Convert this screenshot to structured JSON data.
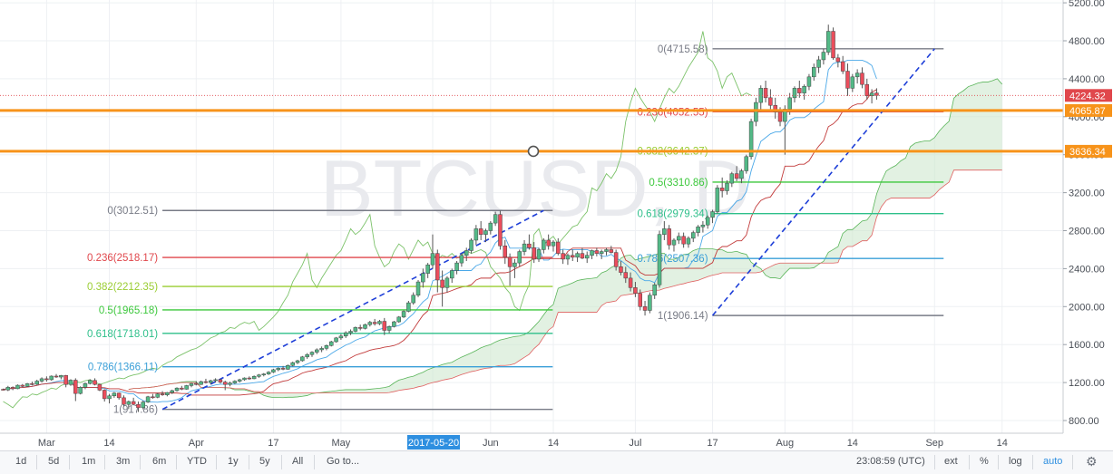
{
  "chart_data": {
    "type": "candlestick",
    "symbol_watermark": "BTCUSD, D",
    "y_axis": {
      "position": "right",
      "ticks": [
        800,
        1200,
        1600,
        2000,
        2400,
        2800,
        3200,
        3600,
        4000,
        4400,
        4800,
        5200
      ],
      "tick_labels": [
        "800.00",
        "1200.00",
        "1600.00",
        "2000.00",
        "2400.00",
        "2800.00",
        "3200.00",
        "3600.00",
        "4000.00",
        "4400.00",
        "4800.00",
        "5200.00"
      ]
    },
    "x_axis": {
      "tick_labels": [
        "Mar",
        "14",
        "Apr",
        "17",
        "May",
        "2017-05-20",
        "Jun",
        "14",
        "Jul",
        "17",
        "Aug",
        "14",
        "Sep",
        "14"
      ],
      "highlighted_label": "2017-05-20"
    },
    "price_badges": [
      {
        "value": 4224.32,
        "label": "4224.32",
        "color": "#e0474c"
      },
      {
        "value": 4065.87,
        "label": "4065.87",
        "color": "#f7931a"
      },
      {
        "value": 3636.34,
        "label": "3636.34",
        "color": "#f7931a"
      }
    ],
    "horizontal_lines": [
      {
        "value": 4065.87,
        "color": "#f7931a"
      },
      {
        "value": 3636.34,
        "color": "#f7931a"
      }
    ],
    "fib_sets": [
      {
        "name": "fib-retracement-1",
        "start_date": "2017-03-25",
        "end_date": "2017-06-12",
        "levels": [
          {
            "label": "0(3012.51)",
            "value": 3012.51,
            "color": "#787b86"
          },
          {
            "label": "0.236(2518.17)",
            "value": 2518.17,
            "color": "#e0474c"
          },
          {
            "label": "0.382(2212.35)",
            "value": 2212.35,
            "color": "#9acd32"
          },
          {
            "label": "0.5(1965.18)",
            "value": 1965.18,
            "color": "#3cc83c"
          },
          {
            "label": "0.618(1718.01)",
            "value": 1718.01,
            "color": "#2dbf8a"
          },
          {
            "label": "0.786(1366.11)",
            "value": 1366.11,
            "color": "#3a9fd8"
          },
          {
            "label": "1(917.86)",
            "value": 917.86,
            "color": "#787b86"
          }
        ]
      },
      {
        "name": "fib-retracement-2",
        "start_date": "2017-07-17",
        "end_date": "2017-09-01",
        "levels": [
          {
            "label": "0(4715.58)",
            "value": 4715.58,
            "color": "#787b86"
          },
          {
            "label": "0.236(4052.55)",
            "value": 4052.55,
            "color": "#e0474c"
          },
          {
            "label": "0.382(3642.37)",
            "value": 3642.37,
            "color": "#9acd32"
          },
          {
            "label": "0.5(3310.86)",
            "value": 3310.86,
            "color": "#3cc83c"
          },
          {
            "label": "0.618(2979.34)",
            "value": 2979.34,
            "color": "#2dbf8a"
          },
          {
            "label": "0.786(2507.36)",
            "value": 2507.36,
            "color": "#3a9fd8"
          },
          {
            "label": "1(1906.14)",
            "value": 1906.14,
            "color": "#787b86"
          }
        ]
      }
    ],
    "trend_lines": [
      {
        "from": [
          "2017-03-25",
          917.86
        ],
        "to": [
          "2017-06-12",
          3012.51
        ],
        "color": "#1e3fd8",
        "style": "dashed"
      },
      {
        "from": [
          "2017-07-17",
          1906.14
        ],
        "to": [
          "2017-09-01",
          4715.58
        ],
        "color": "#1e3fd8",
        "style": "dashed"
      }
    ],
    "candle_colors": {
      "up": "#53b987",
      "down": "#eb4d5c",
      "wick": "#555555"
    },
    "candles": [
      [
        1129,
        1137,
        1118,
        1122
      ],
      [
        1122,
        1165,
        1110,
        1150
      ],
      [
        1150,
        1160,
        1120,
        1135
      ],
      [
        1135,
        1180,
        1130,
        1172
      ],
      [
        1172,
        1185,
        1150,
        1160
      ],
      [
        1160,
        1195,
        1155,
        1188
      ],
      [
        1188,
        1210,
        1170,
        1182
      ],
      [
        1182,
        1230,
        1175,
        1215
      ],
      [
        1215,
        1255,
        1200,
        1240
      ],
      [
        1240,
        1265,
        1210,
        1230
      ],
      [
        1230,
        1275,
        1220,
        1268
      ],
      [
        1268,
        1290,
        1250,
        1258
      ],
      [
        1258,
        1280,
        1235,
        1275
      ],
      [
        1275,
        1280,
        1150,
        1180
      ],
      [
        1180,
        1235,
        1165,
        1225
      ],
      [
        1225,
        1245,
        1005,
        1085
      ],
      [
        1085,
        1160,
        1075,
        1150
      ],
      [
        1150,
        1200,
        1130,
        1190
      ],
      [
        1190,
        1235,
        1180,
        1222
      ],
      [
        1222,
        1245,
        1170,
        1180
      ],
      [
        1180,
        1190,
        1110,
        1120
      ],
      [
        1120,
        1130,
        1000,
        1030
      ],
      [
        1030,
        1080,
        980,
        1060
      ],
      [
        1060,
        1100,
        1040,
        1090
      ],
      [
        1090,
        1095,
        1020,
        1040
      ],
      [
        1040,
        1065,
        950,
        970
      ],
      [
        970,
        1010,
        920,
        1000
      ],
      [
        1000,
        1040,
        960,
        970
      ],
      [
        970,
        1000,
        890,
        935
      ],
      [
        935,
        1010,
        917,
        995
      ],
      [
        995,
        1060,
        985,
        1050
      ],
      [
        1050,
        1080,
        1030,
        1045
      ],
      [
        1045,
        1090,
        1035,
        1080
      ],
      [
        1080,
        1110,
        1060,
        1070
      ],
      [
        1070,
        1100,
        1055,
        1095
      ],
      [
        1095,
        1125,
        1080,
        1115
      ],
      [
        1115,
        1150,
        1105,
        1142
      ],
      [
        1142,
        1165,
        1120,
        1130
      ],
      [
        1130,
        1175,
        1125,
        1168
      ],
      [
        1168,
        1195,
        1150,
        1190
      ],
      [
        1190,
        1215,
        1170,
        1180
      ],
      [
        1180,
        1220,
        1175,
        1210
      ],
      [
        1210,
        1240,
        1190,
        1200
      ],
      [
        1200,
        1230,
        1180,
        1220
      ],
      [
        1220,
        1245,
        1200,
        1230
      ],
      [
        1230,
        1240,
        1190,
        1205
      ],
      [
        1205,
        1220,
        1120,
        1180
      ],
      [
        1180,
        1210,
        1160,
        1195
      ],
      [
        1195,
        1225,
        1185,
        1215
      ],
      [
        1215,
        1240,
        1200,
        1230
      ],
      [
        1230,
        1255,
        1220,
        1248
      ],
      [
        1248,
        1265,
        1230,
        1240
      ],
      [
        1240,
        1275,
        1235,
        1265
      ],
      [
        1265,
        1290,
        1250,
        1280
      ],
      [
        1280,
        1300,
        1265,
        1290
      ],
      [
        1290,
        1320,
        1280,
        1310
      ],
      [
        1310,
        1345,
        1300,
        1335
      ],
      [
        1335,
        1360,
        1320,
        1350
      ],
      [
        1350,
        1375,
        1330,
        1340
      ],
      [
        1340,
        1390,
        1335,
        1380
      ],
      [
        1380,
        1420,
        1370,
        1410
      ],
      [
        1410,
        1440,
        1395,
        1430
      ],
      [
        1430,
        1480,
        1420,
        1470
      ],
      [
        1470,
        1510,
        1450,
        1495
      ],
      [
        1495,
        1530,
        1470,
        1520
      ],
      [
        1520,
        1560,
        1500,
        1545
      ],
      [
        1545,
        1580,
        1520,
        1560
      ],
      [
        1560,
        1600,
        1540,
        1590
      ],
      [
        1590,
        1640,
        1580,
        1630
      ],
      [
        1630,
        1680,
        1620,
        1670
      ],
      [
        1670,
        1710,
        1650,
        1690
      ],
      [
        1690,
        1740,
        1670,
        1725
      ],
      [
        1725,
        1760,
        1700,
        1740
      ],
      [
        1740,
        1790,
        1730,
        1780
      ],
      [
        1780,
        1810,
        1750,
        1770
      ],
      [
        1770,
        1820,
        1760,
        1810
      ],
      [
        1810,
        1850,
        1790,
        1835
      ],
      [
        1835,
        1870,
        1800,
        1820
      ],
      [
        1820,
        1860,
        1805,
        1845
      ],
      [
        1845,
        1880,
        1700,
        1750
      ],
      [
        1750,
        1800,
        1720,
        1790
      ],
      [
        1790,
        1850,
        1780,
        1840
      ],
      [
        1840,
        1900,
        1830,
        1890
      ],
      [
        1890,
        1960,
        1880,
        1950
      ],
      [
        1950,
        2060,
        1940,
        2040
      ],
      [
        2040,
        2150,
        2020,
        2120
      ],
      [
        2120,
        2280,
        2100,
        2260
      ],
      [
        2260,
        2400,
        2200,
        2350
      ],
      [
        2350,
        2460,
        2300,
        2440
      ],
      [
        2440,
        2760,
        2400,
        2560
      ],
      [
        2560,
        2600,
        2150,
        2280
      ],
      [
        2280,
        2380,
        2000,
        2200
      ],
      [
        2200,
        2320,
        2150,
        2300
      ],
      [
        2300,
        2400,
        2250,
        2380
      ],
      [
        2380,
        2480,
        2340,
        2460
      ],
      [
        2460,
        2560,
        2420,
        2540
      ],
      [
        2540,
        2620,
        2480,
        2590
      ],
      [
        2590,
        2720,
        2560,
        2700
      ],
      [
        2700,
        2860,
        2650,
        2820
      ],
      [
        2820,
        2900,
        2700,
        2760
      ],
      [
        2760,
        2820,
        2680,
        2800
      ],
      [
        2800,
        2900,
        2760,
        2880
      ],
      [
        2880,
        3000,
        2850,
        2970
      ],
      [
        2970,
        3012,
        2600,
        2640
      ],
      [
        2640,
        2700,
        2450,
        2520
      ],
      [
        2520,
        2560,
        2220,
        2420
      ],
      [
        2420,
        2500,
        2300,
        2460
      ],
      [
        2460,
        2600,
        2420,
        2580
      ],
      [
        2580,
        2700,
        2540,
        2660
      ],
      [
        2660,
        2760,
        2600,
        2620
      ],
      [
        2620,
        2680,
        2460,
        2500
      ],
      [
        2500,
        2620,
        2470,
        2600
      ],
      [
        2600,
        2720,
        2560,
        2700
      ],
      [
        2700,
        2760,
        2600,
        2640
      ],
      [
        2640,
        2700,
        2580,
        2680
      ],
      [
        2680,
        2720,
        2540,
        2560
      ],
      [
        2560,
        2600,
        2450,
        2500
      ],
      [
        2500,
        2560,
        2440,
        2540
      ],
      [
        2540,
        2600,
        2480,
        2520
      ],
      [
        2520,
        2580,
        2470,
        2560
      ],
      [
        2560,
        2620,
        2500,
        2510
      ],
      [
        2510,
        2580,
        2460,
        2540
      ],
      [
        2540,
        2600,
        2500,
        2590
      ],
      [
        2590,
        2620,
        2530,
        2560
      ],
      [
        2560,
        2600,
        2500,
        2580
      ],
      [
        2580,
        2620,
        2540,
        2600
      ],
      [
        2600,
        2640,
        2560,
        2570
      ],
      [
        2570,
        2600,
        2380,
        2420
      ],
      [
        2420,
        2480,
        2330,
        2360
      ],
      [
        2360,
        2420,
        2250,
        2300
      ],
      [
        2300,
        2360,
        2160,
        2200
      ],
      [
        2200,
        2260,
        2100,
        2140
      ],
      [
        2140,
        2180,
        1960,
        2000
      ],
      [
        2000,
        2060,
        1906,
        1960
      ],
      [
        1960,
        2150,
        1930,
        2120
      ],
      [
        2120,
        2250,
        2080,
        2230
      ],
      [
        2230,
        2800,
        2200,
        2760
      ],
      [
        2760,
        2900,
        2700,
        2820
      ],
      [
        2820,
        2860,
        2600,
        2650
      ],
      [
        2650,
        2720,
        2580,
        2700
      ],
      [
        2700,
        2780,
        2660,
        2740
      ],
      [
        2740,
        2780,
        2620,
        2660
      ],
      [
        2660,
        2740,
        2620,
        2720
      ],
      [
        2720,
        2800,
        2680,
        2780
      ],
      [
        2780,
        2860,
        2740,
        2840
      ],
      [
        2840,
        2900,
        2780,
        2860
      ],
      [
        2860,
        2960,
        2820,
        2940
      ],
      [
        2940,
        3020,
        2880,
        3000
      ],
      [
        3000,
        3280,
        2980,
        3250
      ],
      [
        3250,
        3360,
        3150,
        3220
      ],
      [
        3220,
        3330,
        3180,
        3300
      ],
      [
        3300,
        3420,
        3260,
        3400
      ],
      [
        3400,
        3480,
        3320,
        3350
      ],
      [
        3350,
        3450,
        3300,
        3430
      ],
      [
        3430,
        3600,
        3400,
        3580
      ],
      [
        3580,
        3980,
        3550,
        3950
      ],
      [
        3950,
        4200,
        3900,
        4150
      ],
      [
        4150,
        4330,
        4050,
        4300
      ],
      [
        4300,
        4380,
        4150,
        4200
      ],
      [
        4200,
        4290,
        4080,
        4120
      ],
      [
        4120,
        4200,
        3980,
        4050
      ],
      [
        4050,
        4100,
        3900,
        3950
      ],
      [
        3950,
        4120,
        3600,
        4080
      ],
      [
        4080,
        4250,
        4020,
        4200
      ],
      [
        4200,
        4320,
        4150,
        4300
      ],
      [
        4300,
        4380,
        4200,
        4250
      ],
      [
        4250,
        4340,
        4180,
        4320
      ],
      [
        4320,
        4450,
        4280,
        4420
      ],
      [
        4420,
        4560,
        4380,
        4520
      ],
      [
        4520,
        4640,
        4460,
        4600
      ],
      [
        4600,
        4715,
        4550,
        4680
      ],
      [
        4680,
        4970,
        4650,
        4900
      ],
      [
        4900,
        4940,
        4600,
        4620
      ],
      [
        4620,
        4660,
        4520,
        4580
      ],
      [
        4580,
        4640,
        4450,
        4480
      ],
      [
        4480,
        4560,
        4220,
        4300
      ],
      [
        4300,
        4450,
        4260,
        4420
      ],
      [
        4420,
        4500,
        4350,
        4460
      ],
      [
        4460,
        4520,
        4300,
        4340
      ],
      [
        4340,
        4400,
        4180,
        4220
      ],
      [
        4220,
        4290,
        4140,
        4250
      ],
      [
        4250,
        4300,
        4180,
        4224.32
      ]
    ]
  },
  "bottom_toolbar": {
    "timeframes": [
      "1d",
      "5d",
      "1m",
      "3m",
      "6m",
      "YTD",
      "1y",
      "5y",
      "All"
    ],
    "goto_label": "Go to...",
    "clock": "23:08:59 (UTC)",
    "right_buttons": [
      "ext",
      "%",
      "log",
      "auto"
    ],
    "active_button": "auto"
  }
}
